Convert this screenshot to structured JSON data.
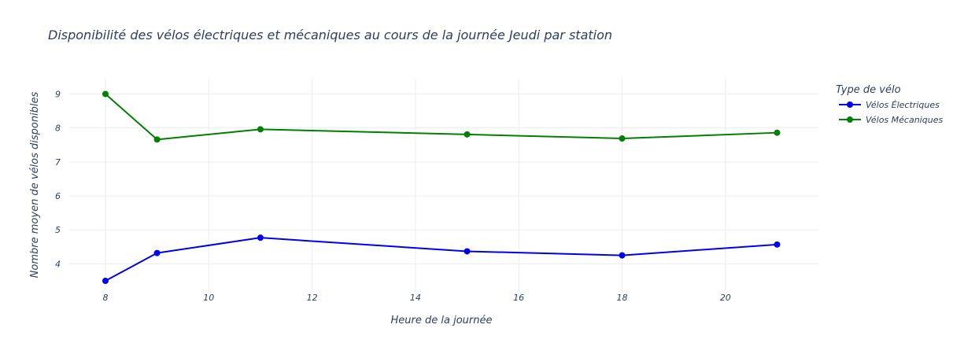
{
  "chart_data": {
    "type": "line",
    "title": "Disponibilité des vélos électriques et mécaniques au cours de la journée Jeudi par station",
    "xlabel": "Heure de la journée",
    "ylabel": "Nombre moyen de vélos disponibles",
    "xlim": [
      7.3,
      21.8
    ],
    "ylim": [
      3.2,
      9.45
    ],
    "x_ticks": [
      8,
      10,
      12,
      14,
      16,
      18,
      20
    ],
    "y_ticks": [
      4,
      5,
      6,
      7,
      8,
      9
    ],
    "grid": true,
    "legend": {
      "title": "Type de vélo",
      "position": "top-right"
    },
    "series": [
      {
        "name": "Vélos Électriques",
        "color": "#0000ee",
        "x": [
          8,
          9,
          11,
          15,
          18,
          21
        ],
        "y": [
          3.5,
          4.32,
          4.77,
          4.37,
          4.25,
          4.57
        ]
      },
      {
        "name": "Vélos Mécaniques",
        "color": "#008000",
        "x": [
          8,
          9,
          11,
          15,
          18,
          21
        ],
        "y": [
          9.0,
          7.66,
          7.96,
          7.81,
          7.69,
          7.86
        ]
      }
    ]
  }
}
